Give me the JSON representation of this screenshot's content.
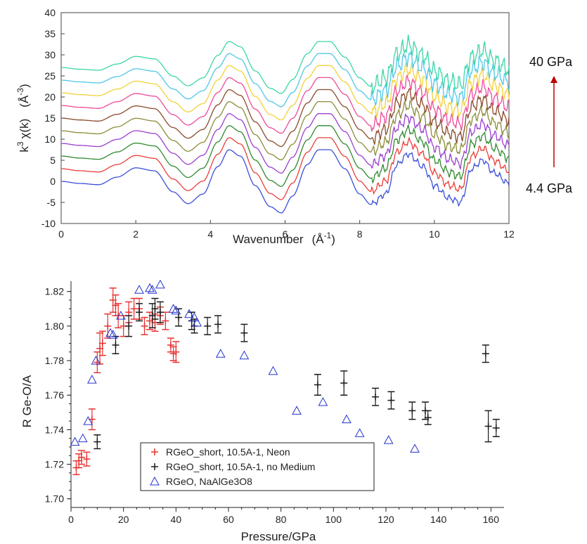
{
  "chart_data": [
    {
      "type": "line",
      "xlabel": "Wavenumber",
      "xunit": "(Å",
      "xunit_sup": "-1",
      "xunit_close": ")",
      "ylabel": "k",
      "ylabel_sup": "3",
      "ylabel_rest": "χ(k)",
      "yunit": "(Å",
      "yunit_sup": "-3",
      "yunit_close": ")",
      "xlim": [
        0,
        12
      ],
      "ylim": [
        -10,
        40
      ],
      "xticks": [
        "0",
        "2",
        "4",
        "6",
        "8",
        "10",
        "12"
      ],
      "yticks": [
        "-10",
        "-5",
        "0",
        "5",
        "10",
        "15",
        "20",
        "25",
        "30",
        "35",
        "40"
      ],
      "annotation_top": "40 GPa",
      "annotation_bottom": "4.4 GPa",
      "arrow_color": "#c00000",
      "series": [
        {
          "color": "#3a4fd8",
          "offset": 0
        },
        {
          "color": "#e8403a",
          "offset": 3
        },
        {
          "color": "#2f8a2f",
          "offset": 6
        },
        {
          "color": "#9a3fd0",
          "offset": 9
        },
        {
          "color": "#8c8c3a",
          "offset": 12
        },
        {
          "color": "#8a4a2a",
          "offset": 15
        },
        {
          "color": "#ee4a9a",
          "offset": 18
        },
        {
          "color": "#f2d13a",
          "offset": 21
        },
        {
          "color": "#4fc7e8",
          "offset": 24
        },
        {
          "color": "#3cd6a8",
          "offset": 27
        }
      ],
      "profile_x": [
        0,
        0.5,
        1.0,
        1.5,
        2.0,
        2.5,
        3.0,
        3.4,
        3.8,
        4.2,
        4.5,
        4.8,
        5.2,
        5.6,
        5.9,
        6.2,
        6.6,
        6.9,
        7.2,
        7.6,
        8.0,
        8.3,
        8.7,
        9.0,
        9.3,
        9.7,
        10.0,
        10.4,
        10.7,
        11.0,
        11.3,
        11.6,
        12.0
      ],
      "profile_y": [
        0,
        -0.5,
        -0.8,
        1.0,
        3.2,
        2.5,
        -2.5,
        -5.3,
        -3.0,
        3.5,
        7.5,
        6.0,
        -1.0,
        -6.0,
        -7.5,
        -3.5,
        4.0,
        7.5,
        7.5,
        3.0,
        -3.0,
        -5.5,
        -3.0,
        4.0,
        6.5,
        3.5,
        -1.0,
        -4.0,
        -5.0,
        3.0,
        5.0,
        2.0,
        -0.5
      ]
    },
    {
      "type": "scatter",
      "xlabel": "Pressure/GPa",
      "ylabel": "R Ge-O/A",
      "xlim": [
        0,
        165
      ],
      "ylim": [
        1.695,
        1.826
      ],
      "xticks": [
        "0",
        "20",
        "40",
        "60",
        "80",
        "100",
        "120",
        "140",
        "160"
      ],
      "yticks": [
        "1.70",
        "1.72",
        "1.74",
        "1.76",
        "1.78",
        "1.80",
        "1.82"
      ],
      "series": [
        {
          "name": "RGeO_short, 10.5A-1, Neon",
          "marker": "+",
          "color": "#e8312e",
          "x": [
            2,
            3,
            4,
            6,
            8,
            10,
            11,
            12,
            14,
            16,
            17,
            18,
            20,
            22,
            24,
            26,
            28,
            30,
            32,
            34,
            36,
            38,
            39,
            40
          ],
          "y": [
            1.718,
            1.722,
            1.724,
            1.723,
            1.746,
            1.779,
            1.787,
            1.79,
            1.8,
            1.815,
            1.812,
            1.806,
            1.8,
            1.808,
            1.81,
            1.81,
            1.8,
            1.803,
            1.802,
            1.806,
            1.803,
            1.789,
            1.784,
            1.785
          ],
          "err": [
            0.004,
            0.004,
            0.004,
            0.004,
            0.006,
            0.006,
            0.009,
            0.007,
            0.007,
            0.007,
            0.006,
            0.007,
            0.006,
            0.006,
            0.006,
            0.006,
            0.005,
            0.005,
            0.005,
            0.005,
            0.005,
            0.004,
            0.004,
            0.006
          ]
        },
        {
          "name": "RGeO_short, 10.5A-1, no Medium",
          "marker": "+",
          "color": "#1a1a1a",
          "x": [
            10,
            17,
            22,
            26,
            31,
            32,
            34,
            41,
            46,
            47,
            52,
            56,
            66,
            94,
            104,
            116,
            122,
            130,
            135,
            136,
            158,
            159,
            162
          ],
          "y": [
            1.733,
            1.789,
            1.8,
            1.808,
            1.806,
            1.81,
            1.808,
            1.805,
            1.803,
            1.8,
            1.8,
            1.801,
            1.796,
            1.766,
            1.767,
            1.759,
            1.757,
            1.751,
            1.751,
            1.747,
            1.784,
            1.742,
            1.741
          ],
          "err": [
            0.004,
            0.005,
            0.006,
            0.005,
            0.007,
            0.006,
            0.006,
            0.005,
            0.005,
            0.004,
            0.005,
            0.005,
            0.005,
            0.006,
            0.007,
            0.005,
            0.005,
            0.005,
            0.005,
            0.004,
            0.005,
            0.009,
            0.005
          ]
        },
        {
          "name": "RGeO, NaAlGe3O8",
          "marker": "triangle",
          "color": "#2233cc",
          "x": [
            1.5,
            4.5,
            6.5,
            8,
            9.5,
            15,
            16,
            19,
            26,
            30,
            31,
            34,
            39,
            40,
            45,
            47,
            48,
            57,
            66,
            77,
            86,
            96,
            105,
            110,
            121,
            131
          ],
          "y": [
            1.733,
            1.735,
            1.745,
            1.769,
            1.78,
            1.796,
            1.795,
            1.806,
            1.821,
            1.822,
            1.821,
            1.824,
            1.81,
            1.809,
            1.807,
            1.805,
            1.802,
            1.784,
            1.783,
            1.774,
            1.751,
            1.756,
            1.746,
            1.738,
            1.734,
            1.729
          ]
        }
      ]
    }
  ]
}
